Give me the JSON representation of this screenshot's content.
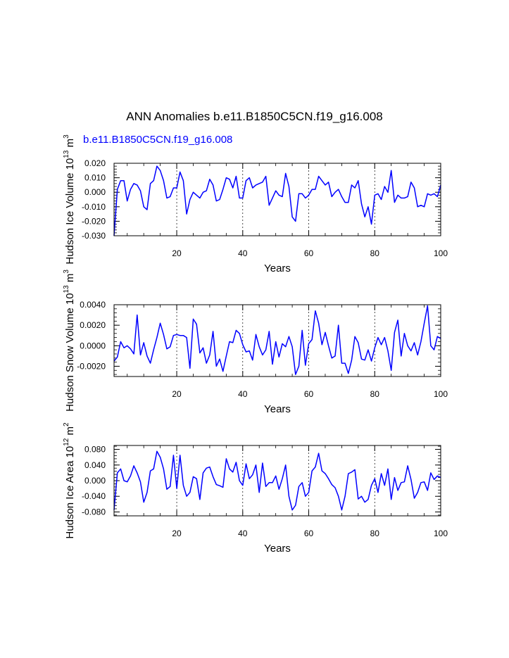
{
  "title": "ANN Anomalies b.e11.B1850C5CN.f19_g16.008",
  "subtitle": "b.e11.B1850C5CN.f19_g16.008",
  "colors": {
    "series": "#0000ff",
    "subtitle": "#0000ff",
    "axis": "#000000"
  },
  "chart_data": [
    {
      "type": "line",
      "title": "",
      "xlabel": "Years",
      "ylabel": "Hudson Ice Volume 10^13 m^3",
      "ylabel_main": "Hudson Ice Volume 10",
      "ylabel_exp1": "13",
      "ylabel_unit": " m",
      "ylabel_exp2": "3",
      "xlim": [
        1,
        100
      ],
      "ylim": [
        -0.03,
        0.02
      ],
      "xticks": [
        20,
        40,
        60,
        80,
        100
      ],
      "yticks": [
        -0.03,
        -0.02,
        -0.01,
        0.0,
        0.01,
        0.02
      ],
      "ytick_labels": [
        "-0.030",
        "-0.020",
        "-0.010",
        "0.000",
        "0.010",
        "0.020"
      ],
      "vlines": [
        20,
        40,
        60,
        80
      ],
      "series": [
        {
          "name": "b.e11.B1850C5CN.f19_g16.008",
          "values": [
            -0.03,
            0.002,
            0.008,
            0.008,
            -0.006,
            0.002,
            0.006,
            0.005,
            0.001,
            -0.01,
            -0.012,
            0.006,
            0.008,
            0.018,
            0.015,
            0.008,
            -0.004,
            -0.003,
            0.003,
            0.003,
            0.014,
            0.008,
            -0.015,
            -0.005,
            0.0,
            -0.002,
            -0.004,
            0.0,
            0.001,
            0.009,
            0.005,
            -0.006,
            -0.005,
            0.002,
            0.01,
            0.009,
            0.003,
            0.011,
            -0.004,
            -0.004,
            0.008,
            0.01,
            0.003,
            0.005,
            0.006,
            0.007,
            0.011,
            -0.009,
            -0.004,
            0.001,
            -0.002,
            -0.003,
            0.013,
            0.004,
            -0.017,
            -0.02,
            -0.001,
            -0.001,
            -0.004,
            -0.002,
            0.002,
            0.002,
            0.011,
            0.008,
            0.005,
            0.007,
            -0.003,
            0.0,
            0.002,
            -0.003,
            -0.007,
            -0.007,
            0.005,
            0.003,
            0.008,
            -0.008,
            -0.017,
            -0.01,
            -0.022,
            -0.002,
            -0.001,
            -0.005,
            0.004,
            0.0,
            0.015,
            -0.007,
            -0.002,
            -0.004,
            -0.004,
            -0.003,
            0.007,
            0.003,
            -0.01,
            -0.009,
            -0.01,
            -0.001,
            -0.002,
            -0.001,
            -0.003,
            0.005
          ]
        }
      ]
    },
    {
      "type": "line",
      "title": "",
      "xlabel": "Years",
      "ylabel": "Hudson Snow Volume 10^13 m^3",
      "ylabel_main": "Hudson Snow Volume 10",
      "ylabel_exp1": "13",
      "ylabel_unit": " m",
      "ylabel_exp2": "3",
      "xlim": [
        1,
        100
      ],
      "ylim": [
        -0.003,
        0.004
      ],
      "xticks": [
        20,
        40,
        60,
        80,
        100
      ],
      "yticks": [
        -0.002,
        0.0,
        0.002,
        0.004
      ],
      "ytick_labels": [
        "-0.0020",
        "0.0000",
        "0.0020",
        "0.0040"
      ],
      "vlines": [
        20,
        40,
        60,
        80
      ],
      "series": [
        {
          "name": "b.e11.B1850C5CN.f19_g16.008",
          "values": [
            -0.0015,
            -0.0011,
            0.0004,
            -0.0002,
            0.0,
            -0.0003,
            -0.0008,
            0.003,
            -0.0009,
            0.0003,
            -0.001,
            -0.0017,
            -0.0004,
            0.0008,
            0.0022,
            0.0011,
            -0.0003,
            -0.0001,
            0.001,
            0.0011,
            0.001,
            0.001,
            0.0008,
            -0.0022,
            0.0026,
            0.0021,
            -0.0007,
            -0.0002,
            -0.0017,
            -0.0009,
            0.0014,
            -0.002,
            -0.0013,
            -0.0025,
            -0.001,
            0.0004,
            0.0003,
            0.0015,
            0.0012,
            0.0001,
            -0.0006,
            -0.0005,
            -0.0014,
            0.0011,
            -0.0001,
            -0.0009,
            -0.0004,
            0.0014,
            -0.0018,
            0.0004,
            -0.0011,
            0.0002,
            -0.0001,
            0.0009,
            -0.0001,
            -0.0028,
            -0.002,
            0.0015,
            -0.0019,
            0.0002,
            0.0006,
            0.0034,
            0.0022,
            0.0001,
            0.0013,
            0.0,
            -0.0012,
            -0.001,
            0.002,
            -0.0017,
            -0.0017,
            -0.0027,
            -0.0014,
            0.0009,
            0.0003,
            -0.0013,
            -0.0014,
            -0.0004,
            -0.0015,
            -0.0002,
            0.0008,
            0.0001,
            0.0008,
            -0.0005,
            -0.0024,
            0.0013,
            0.0025,
            -0.001,
            0.0012,
            0.0,
            -0.0005,
            0.0003,
            -0.0009,
            0.0004,
            0.0022,
            0.0039,
            0.0,
            -0.0004,
            0.0009,
            0.0007
          ]
        }
      ]
    },
    {
      "type": "line",
      "title": "",
      "xlabel": "Years",
      "ylabel": "Hudson Ice Area 10^12 m^2",
      "ylabel_main": "Hudson Ice Area 10",
      "ylabel_exp1": "12",
      "ylabel_unit": " m",
      "ylabel_exp2": "2",
      "xlim": [
        1,
        100
      ],
      "ylim": [
        -0.09,
        0.09
      ],
      "xticks": [
        20,
        40,
        60,
        80,
        100
      ],
      "yticks": [
        -0.08,
        -0.04,
        0.0,
        0.04,
        0.08
      ],
      "ytick_labels": [
        "-0.080",
        "-0.040",
        "0.000",
        "0.040",
        "0.080"
      ],
      "vlines": [
        20,
        40,
        60,
        80
      ],
      "series": [
        {
          "name": "b.e11.B1850C5CN.f19_g16.008",
          "values": [
            -0.075,
            0.02,
            0.03,
            0.0,
            -0.003,
            0.012,
            0.038,
            0.02,
            -0.003,
            -0.055,
            -0.03,
            0.025,
            0.03,
            0.075,
            0.06,
            0.03,
            -0.022,
            -0.015,
            0.065,
            -0.02,
            0.065,
            -0.012,
            -0.04,
            -0.03,
            0.01,
            0.005,
            -0.048,
            0.02,
            0.032,
            0.035,
            0.01,
            -0.01,
            -0.013,
            -0.017,
            0.056,
            0.03,
            0.022,
            0.047,
            0.0,
            -0.012,
            0.043,
            0.005,
            0.015,
            0.04,
            -0.03,
            0.045,
            -0.015,
            -0.005,
            -0.005,
            0.012,
            -0.022,
            0.005,
            0.04,
            -0.04,
            -0.075,
            -0.063,
            -0.015,
            -0.005,
            -0.04,
            -0.03,
            0.025,
            0.035,
            0.07,
            0.025,
            0.018,
            0.005,
            -0.01,
            -0.018,
            -0.04,
            -0.075,
            -0.04,
            0.018,
            0.022,
            0.028,
            -0.047,
            -0.04,
            -0.055,
            -0.048,
            -0.012,
            0.005,
            -0.03,
            0.018,
            -0.012,
            0.03,
            -0.048,
            0.008,
            -0.025,
            -0.005,
            -0.003,
            0.038,
            0.003,
            -0.045,
            -0.03,
            -0.005,
            -0.003,
            -0.025,
            0.02,
            0.003,
            0.012,
            0.008
          ]
        }
      ]
    }
  ]
}
